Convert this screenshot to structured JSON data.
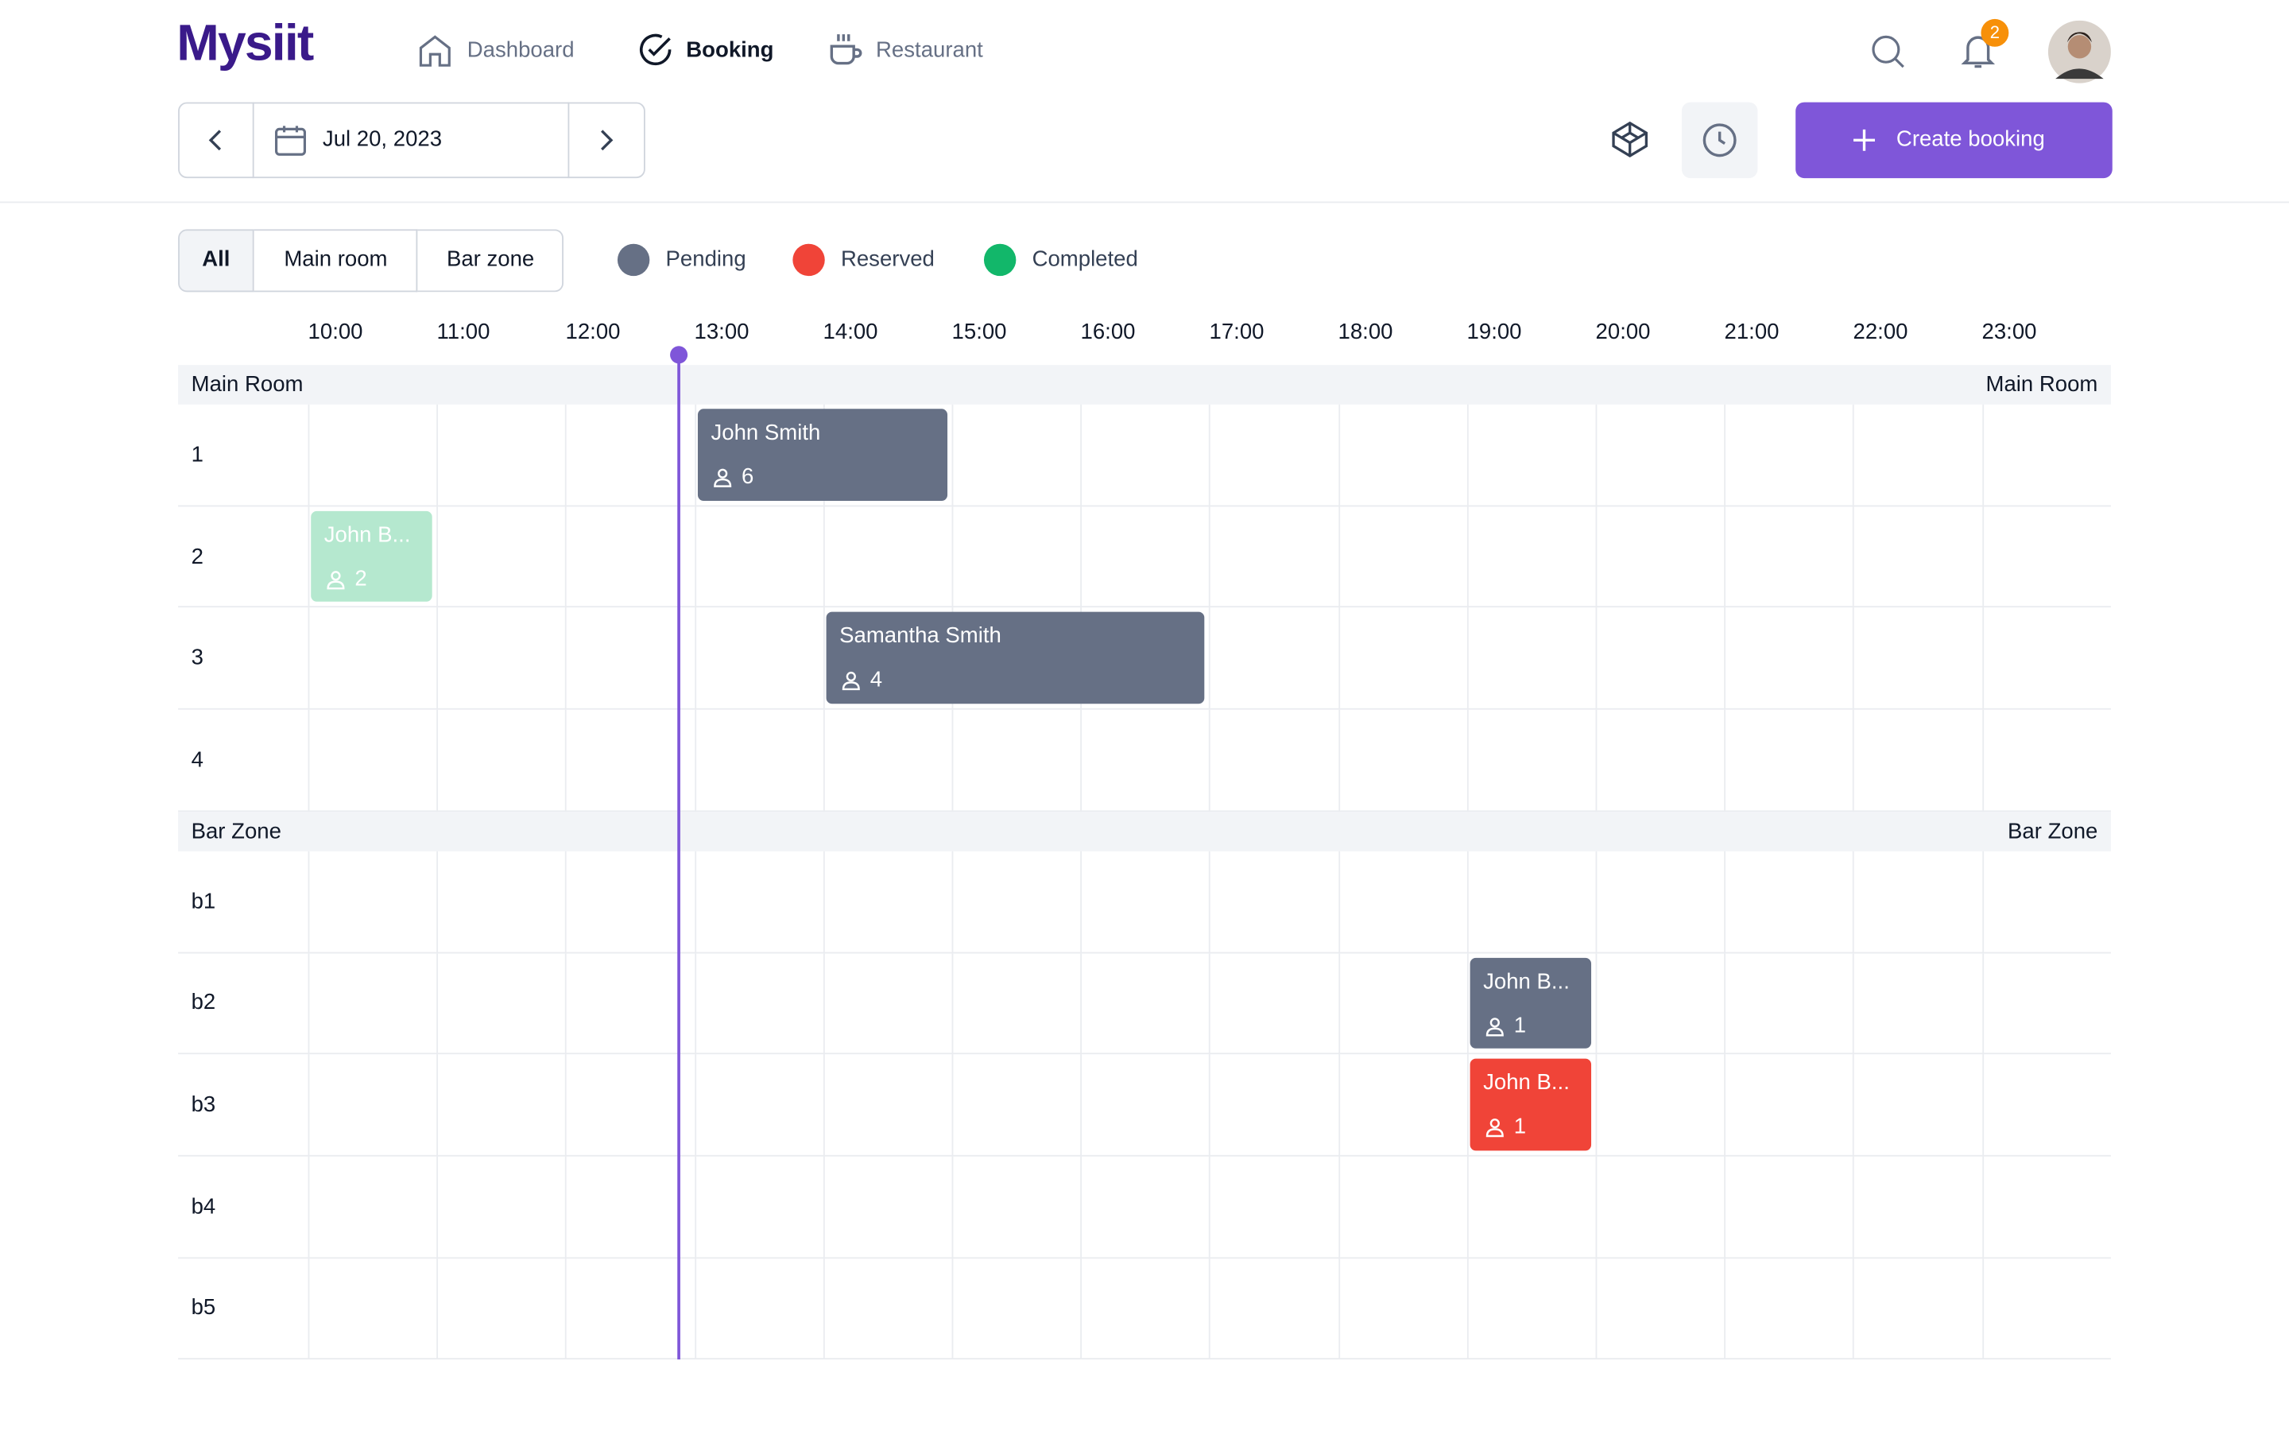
{
  "header": {
    "logo": "Mysiit",
    "nav": [
      "Dashboard",
      "Booking",
      "Restaurant"
    ],
    "notifications": 2,
    "date": "Jul 20, 2023",
    "create_button": "Create booking"
  },
  "filters": [
    "All",
    "Main room",
    "Bar zone"
  ],
  "legend": [
    {
      "label": "Pending",
      "color": "#667085"
    },
    {
      "label": "Reserved",
      "color": "#f04438"
    },
    {
      "label": "Completed",
      "color": "#12b76a"
    }
  ],
  "times": [
    "10:00",
    "11:00",
    "12:00",
    "13:00",
    "14:00",
    "15:00",
    "16:00",
    "17:00",
    "18:00",
    "19:00",
    "20:00",
    "21:00",
    "22:00",
    "23:00"
  ],
  "sections": [
    {
      "name": "Main Room",
      "rows": [
        {
          "label": "1",
          "bookings": [
            {
              "name": "John Smith",
              "guests": 6,
              "color": "#667085"
            }
          ]
        },
        {
          "label": "2",
          "bookings": [
            {
              "name": "John B...",
              "guests": 2,
              "color": "#b5e8cf"
            }
          ]
        },
        {
          "label": "3",
          "bookings": [
            {
              "name": "Samantha Smith",
              "guests": 4,
              "color": "#667085"
            }
          ]
        },
        {
          "label": "4",
          "bookings": []
        }
      ]
    },
    {
      "name": "Bar Zone",
      "rows": [
        {
          "label": "b1",
          "bookings": []
        },
        {
          "label": "b2",
          "bookings": [
            {
              "name": "John B...",
              "guests": 1,
              "color": "#667085"
            }
          ]
        },
        {
          "label": "b3",
          "bookings": [
            {
              "name": "John B...",
              "guests": 1,
              "color": "#f04438"
            }
          ]
        },
        {
          "label": "b4",
          "bookings": []
        },
        {
          "label": "b5",
          "bookings": []
        }
      ]
    }
  ]
}
